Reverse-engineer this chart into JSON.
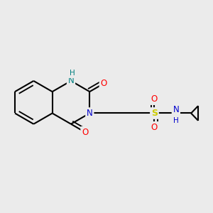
{
  "bg_color": "#ebebeb",
  "atom_colors": {
    "C": "#000000",
    "N": "#0000cd",
    "NH": "#008080",
    "O": "#ff0000",
    "S": "#cccc00",
    "H": "#888888"
  },
  "bond_color": "#000000",
  "bond_lw": 1.5,
  "font_size": 8.5
}
